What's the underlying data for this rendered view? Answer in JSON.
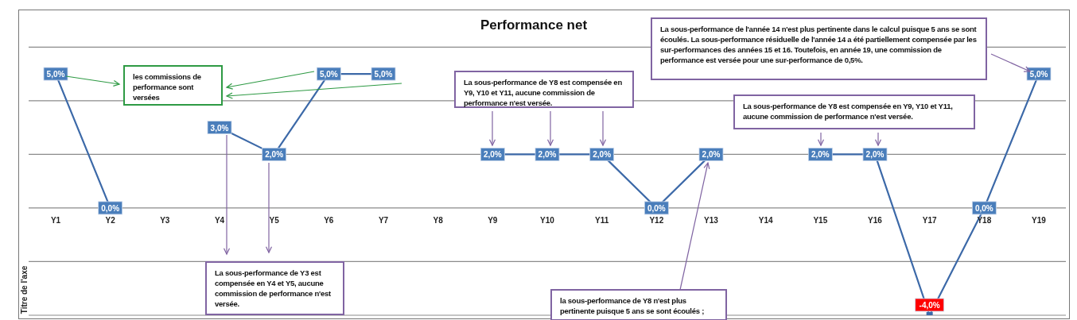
{
  "chart_data": {
    "type": "line",
    "title": "Performance net",
    "ylabel": "Titre de l'axe",
    "categories": [
      "Y1",
      "Y2",
      "Y3",
      "Y4",
      "Y5",
      "Y6",
      "Y7",
      "Y8",
      "Y9",
      "Y10",
      "Y11",
      "Y12",
      "Y13",
      "Y14",
      "Y15",
      "Y16",
      "Y17",
      "Y18",
      "Y19"
    ],
    "values": [
      5,
      0,
      null,
      3,
      2,
      5,
      5,
      null,
      2,
      2,
      2,
      0,
      2,
      null,
      2,
      2,
      -4,
      0,
      5
    ],
    "value_labels": [
      "5,0%",
      "0,0%",
      null,
      "3,0%",
      "2,0%",
      "5,0%",
      "5,0%",
      null,
      "2,0%",
      "2,0%",
      "2,0%",
      "0,0%",
      "2,0%",
      null,
      "2,0%",
      "2,0%",
      "-4,0%",
      "0,0%",
      "5,0%"
    ],
    "color": "#3c69a8",
    "ylim": [
      -4,
      7.4
    ],
    "yticks": [
      6,
      4,
      2,
      0,
      -2,
      -4
    ],
    "tick_labels": "x",
    "grid": "y",
    "marker": "square",
    "line_style": "solid",
    "legend": false,
    "annotations": [
      "les commissions de performance sont versées",
      "La sous-performance de Y3 est compensée en Y4 et Y5, aucune commission de performance n'est versée.",
      "La sous-performance de Y8 est compensée en Y9, Y10 et Y11, aucune commission de performance n'est versée.",
      "La sous-performance de l'année 14 n'est plus pertinente dans le calcul puisque 5 ans se sont écoulés. La sous-performance résiduelle de l'année 14 a été partiellement compensée par les sur-performances des années 15 et 16. Toutefois, en année 19, une commission de performance est versée pour une sur-performance de 0,5%.",
      "La sous-performance de Y8 est compensée en Y9, Y10 et Y11, aucune commission de performance n'est versée.",
      "la sous-performance de Y8 n'est plus pertinente puisque 5 ans se sont écoulés ;"
    ]
  }
}
